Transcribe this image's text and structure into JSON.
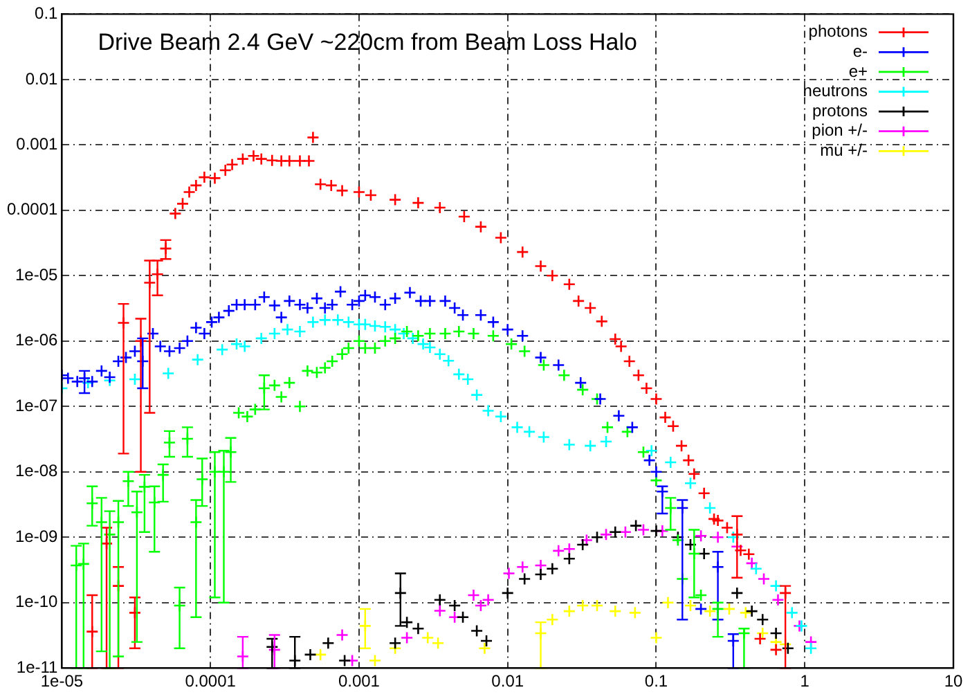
{
  "chart_data": {
    "type": "scatter",
    "title": "Drive Beam 2.4 GeV ~220cm from Beam Loss Halo",
    "log": "xy",
    "grid": true,
    "legend": "top right",
    "marker": "cross",
    "xlim": [
      1e-05,
      10
    ],
    "xticks": [
      {
        "value": 1e-05,
        "label": "1e-05"
      },
      0.0001,
      0.001,
      0.01,
      0.1,
      1,
      10
    ],
    "ylim": [
      1e-11,
      0.1
    ],
    "yticks": [
      {
        "value": 1e-11,
        "label": "1e-11"
      },
      {
        "value": 1e-10,
        "label": "1e-10"
      },
      {
        "value": 1e-09,
        "label": "1e-09"
      },
      {
        "value": 1e-08,
        "label": "1e-08"
      },
      {
        "value": 1e-07,
        "label": "1e-07"
      },
      {
        "value": 1e-06,
        "label": "1e-06"
      },
      {
        "value": 1e-05,
        "label": "1e-05"
      },
      0.0001,
      0.001,
      0.01,
      0.1
    ],
    "series": [
      {
        "name": "photons",
        "color": "#ff0000",
        "x": [
          1.6e-05,
          2e-05,
          2.4e-05,
          2.6e-05,
          3.1e-05,
          3.4e-05,
          3.9e-05,
          4.4e-05,
          5e-05,
          5.8e-05,
          6.5e-05,
          7.2e-05,
          8e-05,
          9.1e-05,
          0.000107,
          0.000126,
          0.00014,
          0.000165,
          0.000195,
          0.00022,
          0.00026,
          0.0003,
          0.00034,
          0.0004,
          0.00046,
          0.00049,
          0.00055,
          0.00065,
          0.00077,
          0.001,
          0.0012,
          0.00175,
          0.0025,
          0.0035,
          0.0051,
          0.0066,
          0.009,
          0.0126,
          0.0167,
          0.02,
          0.026,
          0.03,
          0.036,
          0.043,
          0.053,
          0.058,
          0.066,
          0.076,
          0.086,
          0.1,
          0.115,
          0.13,
          0.148,
          0.165,
          0.18,
          0.21,
          0.245,
          0.26,
          0.3,
          0.35,
          0.37,
          0.42,
          0.5,
          0.64,
          0.74
        ],
        "values": [
          3.6e-11,
          8e-10,
          1.8e-10,
          1.9e-06,
          7e-11,
          1e-06,
          7.8e-06,
          1.05e-05,
          2.6e-05,
          8.9e-05,
          0.000126,
          0.00019,
          0.00024,
          0.00032,
          0.00031,
          0.00041,
          0.0005,
          0.00061,
          0.00068,
          0.00061,
          0.00058,
          0.00057,
          0.00057,
          0.00057,
          0.00057,
          0.0013,
          0.00025,
          0.00024,
          0.0002,
          0.00019,
          0.00017,
          0.000145,
          0.00013,
          0.00011,
          8e-05,
          5.6e-05,
          3.8e-05,
          2.3e-05,
          1.4e-05,
          1e-05,
          7.4e-06,
          4.1e-06,
          3.2e-06,
          2e-06,
          1.07e-06,
          8.3e-07,
          4.9e-07,
          3e-07,
          1.9e-07,
          1.3e-07,
          6.8e-08,
          5e-08,
          2.5e-08,
          1.5e-08,
          9.3e-09,
          4.7e-09,
          1.9e-09,
          1.8e-09,
          1.4e-09,
          1.1e-09,
          6.3e-10,
          5.5e-10,
          2.8e-11,
          1.9e-11,
          1.4e-10
        ],
        "errors": [
          [
            1e-11,
            1.3e-10
          ],
          [
            1e-11,
            1.4e-09
          ],
          [
            1e-11,
            3.5e-10
          ],
          [
            1.9e-08,
            3.7e-06
          ],
          [
            2e-11,
            1.2e-10
          ],
          [
            1e-08,
            2.2e-06
          ],
          [
            8e-08,
            1.7e-05
          ],
          [
            5e-06,
            1.7e-05
          ],
          [
            1.8e-05,
            3.5e-05
          ],
          null,
          null,
          null,
          null,
          null,
          null,
          null,
          null,
          null,
          null,
          null,
          null,
          null,
          null,
          null,
          null,
          null,
          null,
          null,
          null,
          null,
          null,
          null,
          null,
          null,
          null,
          null,
          null,
          null,
          null,
          null,
          null,
          null,
          null,
          null,
          null,
          null,
          null,
          null,
          null,
          null,
          null,
          null,
          null,
          null,
          null,
          null,
          null,
          null,
          null,
          [
            2.4e-10,
            2.1e-09
          ],
          null,
          null,
          null,
          null,
          [
            1e-11,
            1.8e-10
          ]
        ]
      },
      {
        "name": "e-",
        "color": "#0000ff",
        "x": [
          1e-05,
          1.1e-05,
          1.27e-05,
          1.42e-05,
          1.6e-05,
          1.85e-05,
          2.1e-05,
          2.4e-05,
          2.7e-05,
          3.1e-05,
          3.5e-05,
          4.1e-05,
          4.6e-05,
          5.3e-05,
          6.2e-05,
          7e-05,
          8e-05,
          9.1e-05,
          0.000102,
          0.000114,
          0.000133,
          0.00015,
          0.00017,
          0.0002,
          0.00023,
          0.00027,
          0.0003,
          0.00034,
          0.0004,
          0.00045,
          0.00052,
          0.00059,
          0.00066,
          0.00075,
          0.0009,
          0.001,
          0.0011,
          0.00128,
          0.0015,
          0.00175,
          0.0022,
          0.0026,
          0.003,
          0.0038,
          0.0044,
          0.005,
          0.0066,
          0.008,
          0.01,
          0.0126,
          0.0167,
          0.022,
          0.031,
          0.042,
          0.056,
          0.069,
          0.09,
          0.1,
          0.11,
          0.15,
          0.2,
          0.26,
          0.33
        ],
        "values": [
          3e-07,
          2.7e-07,
          2.4e-07,
          2.7e-07,
          2.4e-07,
          3.5e-07,
          2.8e-07,
          4.9e-07,
          5.6e-07,
          7e-07,
          4.9e-07,
          1.3e-06,
          8.3e-07,
          7e-07,
          7.8e-07,
          1e-06,
          1.6e-06,
          1.3e-06,
          1.95e-06,
          2.3e-06,
          2.9e-06,
          3.6e-06,
          3.6e-06,
          3.6e-06,
          4.7e-06,
          3.5e-06,
          2.3e-06,
          4.1e-06,
          3.6e-06,
          3.2e-06,
          4.5e-06,
          3.2e-06,
          3.6e-06,
          5.7e-06,
          3.6e-06,
          4.1e-06,
          5e-06,
          4.7e-06,
          3.6e-06,
          4.5e-06,
          5.5e-06,
          4.1e-06,
          4.1e-06,
          4.1e-06,
          3.2e-06,
          2.5e-06,
          2.5e-06,
          1.95e-06,
          1.5e-06,
          1.2e-06,
          5.6e-07,
          4.3e-07,
          2.3e-07,
          1.3e-07,
          7.2e-08,
          4.8e-08,
          1.5e-08,
          1e-08,
          5e-09,
          2.8e-09,
          8e-11,
          3.5e-10,
          2.6e-11
        ],
        "errors": [
          null,
          null,
          null,
          [
            1.6e-07,
            3.5e-07
          ],
          null,
          null,
          null,
          null,
          null,
          null,
          [
            1.9e-07,
            1.1e-06
          ],
          null,
          null,
          null,
          null,
          null,
          null,
          null,
          null,
          null,
          null,
          null,
          null,
          null,
          null,
          null,
          null,
          null,
          null,
          null,
          null,
          null,
          null,
          null,
          null,
          null,
          null,
          null,
          null,
          null,
          null,
          null,
          null,
          null,
          null,
          null,
          null,
          null,
          null,
          null,
          null,
          null,
          null,
          null,
          null,
          null,
          null,
          null,
          [
            2.3e-09,
            6e-09
          ],
          [
            5.5e-11,
            3.7e-09
          ],
          null,
          [
            5.5e-11,
            6e-10
          ],
          [
            1e-11,
            3.3e-11
          ]
        ]
      },
      {
        "name": "e+",
        "color": "#00ff00",
        "x": [
          1.25e-05,
          1.4e-05,
          1.6e-05,
          1.85e-05,
          2.1e-05,
          2.4e-05,
          2.8e-05,
          3.2e-05,
          3.6e-05,
          4.2e-05,
          4.8e-05,
          5.3e-05,
          6.2e-05,
          7e-05,
          8e-05,
          8.8e-05,
          0.000107,
          0.000123,
          0.000137,
          0.000155,
          0.000177,
          0.0002,
          0.00023,
          0.00027,
          0.0003,
          0.00034,
          0.0004,
          0.00045,
          0.00052,
          0.00059,
          0.00066,
          0.00077,
          0.00085,
          0.001,
          0.0011,
          0.00128,
          0.0015,
          0.00175,
          0.0021,
          0.0025,
          0.003,
          0.0038,
          0.0047,
          0.0059,
          0.008,
          0.0106,
          0.013,
          0.0175,
          0.024,
          0.032,
          0.04,
          0.047,
          0.064,
          0.082,
          0.1,
          0.125,
          0.14,
          0.15,
          0.18,
          0.2,
          0.26,
          0.39
        ],
        "values": [
          3.7e-10,
          3.9e-10,
          3.3e-09,
          1.7e-09,
          1.1e-09,
          1.7e-09,
          7.2e-09,
          2.4e-09,
          5.9e-09,
          3.4e-09,
          9e-09,
          2.8e-08,
          9e-11,
          3.2e-08,
          1.7e-09,
          7.7e-09,
          1e-08,
          1e-08,
          2e-08,
          8e-08,
          7e-08,
          9e-08,
          1.9e-07,
          2.1e-07,
          1.4e-07,
          2.3e-07,
          1e-07,
          3.5e-07,
          3.3e-07,
          3.9e-07,
          4.9e-07,
          6.3e-07,
          7.8e-07,
          1e-06,
          7.8e-07,
          7.8e-07,
          1e-06,
          1.1e-06,
          1.4e-06,
          1.2e-06,
          1.3e-06,
          1.3e-06,
          1.4e-06,
          1.3e-06,
          1.2e-06,
          9e-07,
          7e-07,
          4.3e-07,
          3e-07,
          1.8e-07,
          1.3e-07,
          4.8e-08,
          4.1e-08,
          2e-08,
          7.4e-09,
          2.8e-09,
          9e-10,
          2.3e-10,
          5.6e-10,
          1.3e-10,
          8e-11,
          3.4e-11
        ],
        "errors": [
          [
            1e-11,
            7.4e-10
          ],
          [
            1e-11,
            8e-10
          ],
          [
            1.5e-09,
            6e-09
          ],
          [
            1.8e-11,
            4e-09
          ],
          [
            1e-11,
            2.5e-09
          ],
          [
            1.5e-11,
            3.6e-09
          ],
          [
            3e-09,
            1e-08
          ],
          [
            2.5e-11,
            5e-09
          ],
          [
            1.2e-09,
            9e-09
          ],
          [
            6e-10,
            6e-09
          ],
          [
            3.5e-09,
            1.3e-08
          ],
          [
            1.7e-08,
            4.2e-08
          ],
          [
            2e-11,
            1.7e-10
          ],
          [
            1.7e-08,
            4.8e-08
          ],
          [
            6e-11,
            3.7e-09
          ],
          [
            3e-09,
            1.6e-08
          ],
          [
            1.2e-10,
            2e-08
          ],
          [
            1e-10,
            2.1e-08
          ],
          [
            7e-09,
            3.3e-08
          ],
          null,
          null,
          null,
          [
            9e-08,
            3e-07
          ],
          null,
          null,
          null,
          null,
          null,
          null,
          null,
          null,
          null,
          null,
          null,
          null,
          null,
          null,
          null,
          null,
          null,
          null,
          null,
          null,
          null,
          null,
          null,
          null,
          null,
          null,
          null,
          null,
          null,
          null,
          null,
          null,
          [
            1.3e-09,
            4e-09
          ],
          null,
          null,
          [
            1.2e-10,
            1.3e-09
          ],
          null,
          [
            3e-11,
            1e-10
          ],
          [
            1e-11,
            4e-11
          ]
        ]
      },
      {
        "name": "neutrons",
        "color": "#00ffff",
        "x": [
          1e-05,
          1.5e-05,
          2.1e-05,
          3.1e-05,
          5.2e-05,
          8.2e-05,
          0.00012,
          0.00015,
          0.00017,
          0.00022,
          0.00027,
          0.00033,
          0.0004,
          0.00049,
          0.00059,
          0.00072,
          0.00085,
          0.001,
          0.0011,
          0.00128,
          0.0015,
          0.00175,
          0.002,
          0.0023,
          0.0027,
          0.003,
          0.0035,
          0.004,
          0.0047,
          0.0054,
          0.0062,
          0.0074,
          0.009,
          0.0116,
          0.014,
          0.0175,
          0.026,
          0.036,
          0.046,
          0.093,
          0.125,
          0.17,
          0.23,
          0.33,
          0.47,
          0.64,
          0.82,
          0.95,
          1.1
        ],
        "values": [
          1.9e-07,
          2.3e-07,
          2.5e-07,
          2.6e-07,
          3.2e-07,
          5.2e-07,
          7.4e-07,
          9e-07,
          8.3e-07,
          1.1e-06,
          1.3e-06,
          1.5e-06,
          1.4e-06,
          1.95e-06,
          2.1e-06,
          2.1e-06,
          1.95e-06,
          1.8e-06,
          1.8e-06,
          1.7e-06,
          1.65e-06,
          1.5e-06,
          1.3e-06,
          1.1e-06,
          9e-07,
          8e-07,
          6.3e-07,
          5e-07,
          3.1e-07,
          2.6e-07,
          1.5e-07,
          8.6e-08,
          7e-08,
          4.8e-08,
          4.1e-08,
          3.4e-08,
          2.6e-08,
          2.5e-08,
          2.9e-08,
          2.1e-08,
          1.4e-08,
          6.7e-09,
          2.8e-09,
          1e-09,
          3.3e-10,
          1.8e-10,
          7e-11,
          4.4e-11,
          2e-11
        ]
      },
      {
        "name": "protons",
        "color": "#000000",
        "x": [
          0.00026,
          0.00037,
          0.00047,
          0.00062,
          0.0008,
          0.00175,
          0.0019,
          0.0021,
          0.0025,
          0.0035,
          0.0044,
          0.005,
          0.0062,
          0.0072,
          0.01,
          0.013,
          0.0167,
          0.02,
          0.026,
          0.032,
          0.04,
          0.053,
          0.073,
          0.1,
          0.14,
          0.17,
          0.21,
          0.26,
          0.35,
          0.44,
          0.52,
          0.64,
          0.77
        ],
        "values": [
          2.1e-11,
          1.3e-11,
          1.6e-11,
          2.4e-11,
          1.3e-11,
          2.4e-11,
          1.4e-10,
          5e-11,
          4e-11,
          1.1e-10,
          9e-11,
          6e-11,
          3.7e-11,
          2.6e-11,
          1.4e-10,
          2.3e-10,
          2.7e-10,
          3.3e-10,
          4.7e-10,
          7.7e-10,
          1e-09,
          1.2e-09,
          1.5e-09,
          1.25e-09,
          1e-09,
          7.7e-10,
          5.6e-10,
          null,
          1.4e-10,
          7.4e-11,
          5.5e-11,
          3.4e-11,
          2e-11
        ],
        "errors": [
          [
            1e-11,
            2.8e-11
          ],
          [
            1e-11,
            3e-11
          ],
          null,
          null,
          null,
          null,
          [
            4.4e-11,
            2.8e-10
          ],
          null,
          null,
          null,
          null,
          null,
          null,
          null,
          null,
          null,
          null,
          null,
          null,
          null,
          null,
          null,
          null,
          null,
          null,
          null,
          null,
          null,
          null,
          null,
          null,
          null,
          null
        ]
      },
      {
        "name": "pion +/-",
        "color": "#ff00ff",
        "x": [
          0.000165,
          0.00027,
          0.00077,
          0.0009,
          0.0021,
          0.0035,
          0.0044,
          0.0059,
          0.0066,
          0.0074,
          0.0102,
          0.0126,
          0.0167,
          0.022,
          0.026,
          0.034,
          0.046,
          0.062,
          0.082,
          0.11,
          0.15,
          0.2,
          0.26,
          0.35,
          0.44,
          0.53,
          0.66,
          0.92,
          1.1
        ],
        "values": [
          1.5e-11,
          1.9e-11,
          3.2e-11,
          1.3e-11,
          2.9e-11,
          7.5e-11,
          6e-11,
          1.3e-10,
          9e-11,
          1.1e-10,
          2.8e-10,
          3.5e-10,
          3.7e-10,
          6.2e-10,
          6.6e-10,
          9e-10,
          1.1e-09,
          1.2e-09,
          1.3e-09,
          1.25e-09,
          null,
          1.05e-09,
          1e-09,
          7.2e-10,
          4e-10,
          2.3e-10,
          1.1e-10,
          4.4e-11,
          2.5e-11
        ],
        "errors": [
          [
            1e-11,
            3e-11
          ],
          [
            1e-11,
            3.2e-11
          ],
          null,
          null,
          null,
          null,
          null,
          null,
          null,
          null,
          null,
          null,
          null,
          null,
          null,
          null,
          null,
          null,
          null,
          null,
          null,
          null,
          null,
          null,
          null,
          null,
          null,
          null,
          null
        ]
      },
      {
        "name": "mu +/-",
        "color": "#ffff00",
        "x": [
          0.00055,
          0.0011,
          0.00128,
          0.00175,
          0.0029,
          0.0034,
          0.007,
          0.0167,
          0.02,
          0.026,
          0.032,
          0.04,
          0.053,
          0.072,
          0.1,
          0.12,
          0.17,
          0.23,
          0.31,
          0.4,
          0.52,
          0.64,
          0.74
        ],
        "values": [
          1.6e-11,
          4.4e-11,
          1.3e-11,
          2e-11,
          2.9e-11,
          2.4e-11,
          2e-11,
          3.4e-11,
          5.5e-11,
          7.4e-11,
          9e-11,
          9e-11,
          7.4e-11,
          7e-11,
          2.9e-11,
          1e-10,
          9e-11,
          7.4e-11,
          8e-11,
          7e-11,
          3.4e-11,
          2.5e-11,
          2.3e-11
        ],
        "errors": [
          null,
          [
            2e-11,
            8e-11
          ],
          null,
          null,
          null,
          null,
          null,
          [
            1e-11,
            5e-11
          ],
          null,
          null,
          null,
          null,
          null,
          null,
          null,
          null,
          null,
          null,
          null,
          null,
          null,
          null,
          null
        ]
      }
    ]
  }
}
